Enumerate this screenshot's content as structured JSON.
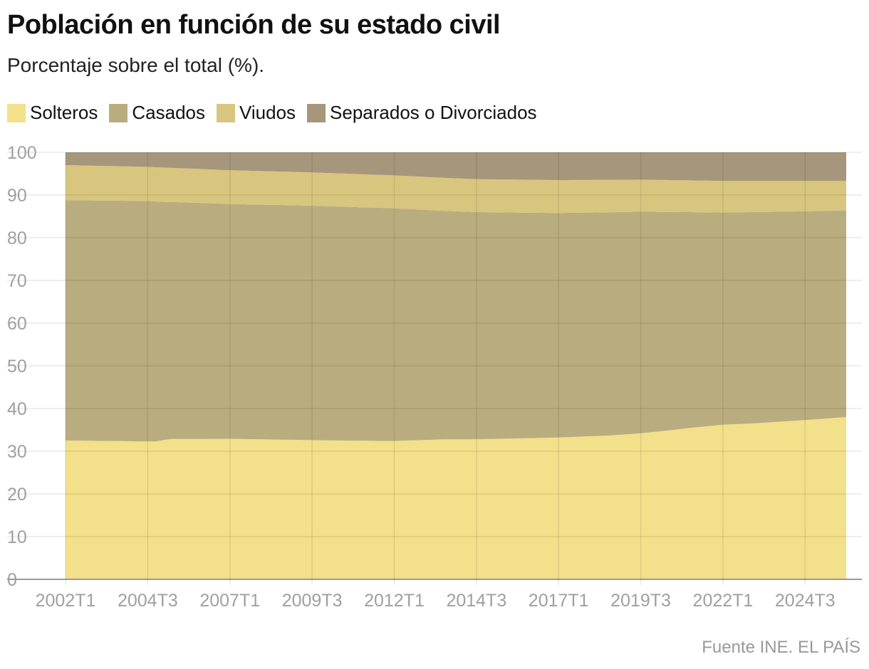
{
  "chart_data": {
    "type": "area",
    "stacked": true,
    "title": "Población en función de su estado civil",
    "subtitle": "Porcentaje sobre el total (%).",
    "source": "Fuente INE. EL PAÍS",
    "y_ticks": [
      0,
      10,
      20,
      30,
      40,
      50,
      60,
      70,
      80,
      90,
      100
    ],
    "x_ticks": [
      "2002T1",
      "2004T3",
      "2007T1",
      "2009T3",
      "2012T1",
      "2014T3",
      "2017T1",
      "2019T3",
      "2022T1",
      "2024T3"
    ],
    "ylim": [
      0,
      100
    ],
    "x_range": [
      "2002T1",
      "2025T4"
    ],
    "grid": true,
    "legend_placement": "top-left",
    "series": [
      {
        "name": "Solteros",
        "color": "#f2e08a",
        "keyframes": [
          {
            "q": "2002T1",
            "v": 32.5
          },
          {
            "q": "2004T3",
            "v": 32.3
          },
          {
            "q": "2004T4",
            "v": 32.1
          },
          {
            "q": "2005T2",
            "v": 32.8
          },
          {
            "q": "2007T1",
            "v": 32.9
          },
          {
            "q": "2009T3",
            "v": 32.6
          },
          {
            "q": "2011T1",
            "v": 32.4
          },
          {
            "q": "2012T1",
            "v": 32.4
          },
          {
            "q": "2014T3",
            "v": 32.8
          },
          {
            "q": "2017T1",
            "v": 33.2
          },
          {
            "q": "2018T3",
            "v": 33.6
          },
          {
            "q": "2019T3",
            "v": 34.2
          },
          {
            "q": "2020T3",
            "v": 35.0
          },
          {
            "q": "2021T1",
            "v": 35.5
          },
          {
            "q": "2022T1",
            "v": 36.2
          },
          {
            "q": "2023T1",
            "v": 36.5
          },
          {
            "q": "2024T3",
            "v": 37.3
          },
          {
            "q": "2025T4",
            "v": 38.0
          }
        ]
      },
      {
        "name": "Casados",
        "color": "#b9ad7f",
        "keyframes": [
          {
            "q": "2002T1",
            "v": 56.3
          },
          {
            "q": "2004T3",
            "v": 56.3
          },
          {
            "q": "2005T1",
            "v": 55.4
          },
          {
            "q": "2007T1",
            "v": 55.0
          },
          {
            "q": "2009T3",
            "v": 54.9
          },
          {
            "q": "2011T1",
            "v": 54.6
          },
          {
            "q": "2012T1",
            "v": 54.5
          },
          {
            "q": "2013T3",
            "v": 53.3
          },
          {
            "q": "2014T3",
            "v": 53.2
          },
          {
            "q": "2017T1",
            "v": 52.6
          },
          {
            "q": "2019T3",
            "v": 51.9
          },
          {
            "q": "2022T1",
            "v": 49.7
          },
          {
            "q": "2024T3",
            "v": 48.9
          },
          {
            "q": "2025T4",
            "v": 48.4
          }
        ]
      },
      {
        "name": "Viudos",
        "color": "#d8c67e",
        "keyframes": [
          {
            "q": "2002T1",
            "v": 8.2
          },
          {
            "q": "2004T3",
            "v": 8.0
          },
          {
            "q": "2007T1",
            "v": 7.9
          },
          {
            "q": "2009T3",
            "v": 7.8
          },
          {
            "q": "2012T1",
            "v": 7.7
          },
          {
            "q": "2014T3",
            "v": 7.7
          },
          {
            "q": "2017T1",
            "v": 7.7
          },
          {
            "q": "2019T3",
            "v": 7.5
          },
          {
            "q": "2022T1",
            "v": 7.4
          },
          {
            "q": "2024T3",
            "v": 7.1
          },
          {
            "q": "2025T4",
            "v": 6.9
          }
        ]
      },
      {
        "name": "Separados o Divorciados",
        "color": "#a5967c",
        "keyframes": [
          {
            "q": "2002T1",
            "v": 3.0
          },
          {
            "q": "2004T3",
            "v": 3.4
          },
          {
            "q": "2007T1",
            "v": 4.2
          },
          {
            "q": "2009T3",
            "v": 4.7
          },
          {
            "q": "2012T1",
            "v": 5.4
          },
          {
            "q": "2014T3",
            "v": 6.3
          },
          {
            "q": "2017T1",
            "v": 6.5
          },
          {
            "q": "2019T3",
            "v": 6.4
          },
          {
            "q": "2022T1",
            "v": 6.7
          },
          {
            "q": "2024T3",
            "v": 6.7
          },
          {
            "q": "2025T4",
            "v": 6.7
          }
        ]
      }
    ]
  }
}
